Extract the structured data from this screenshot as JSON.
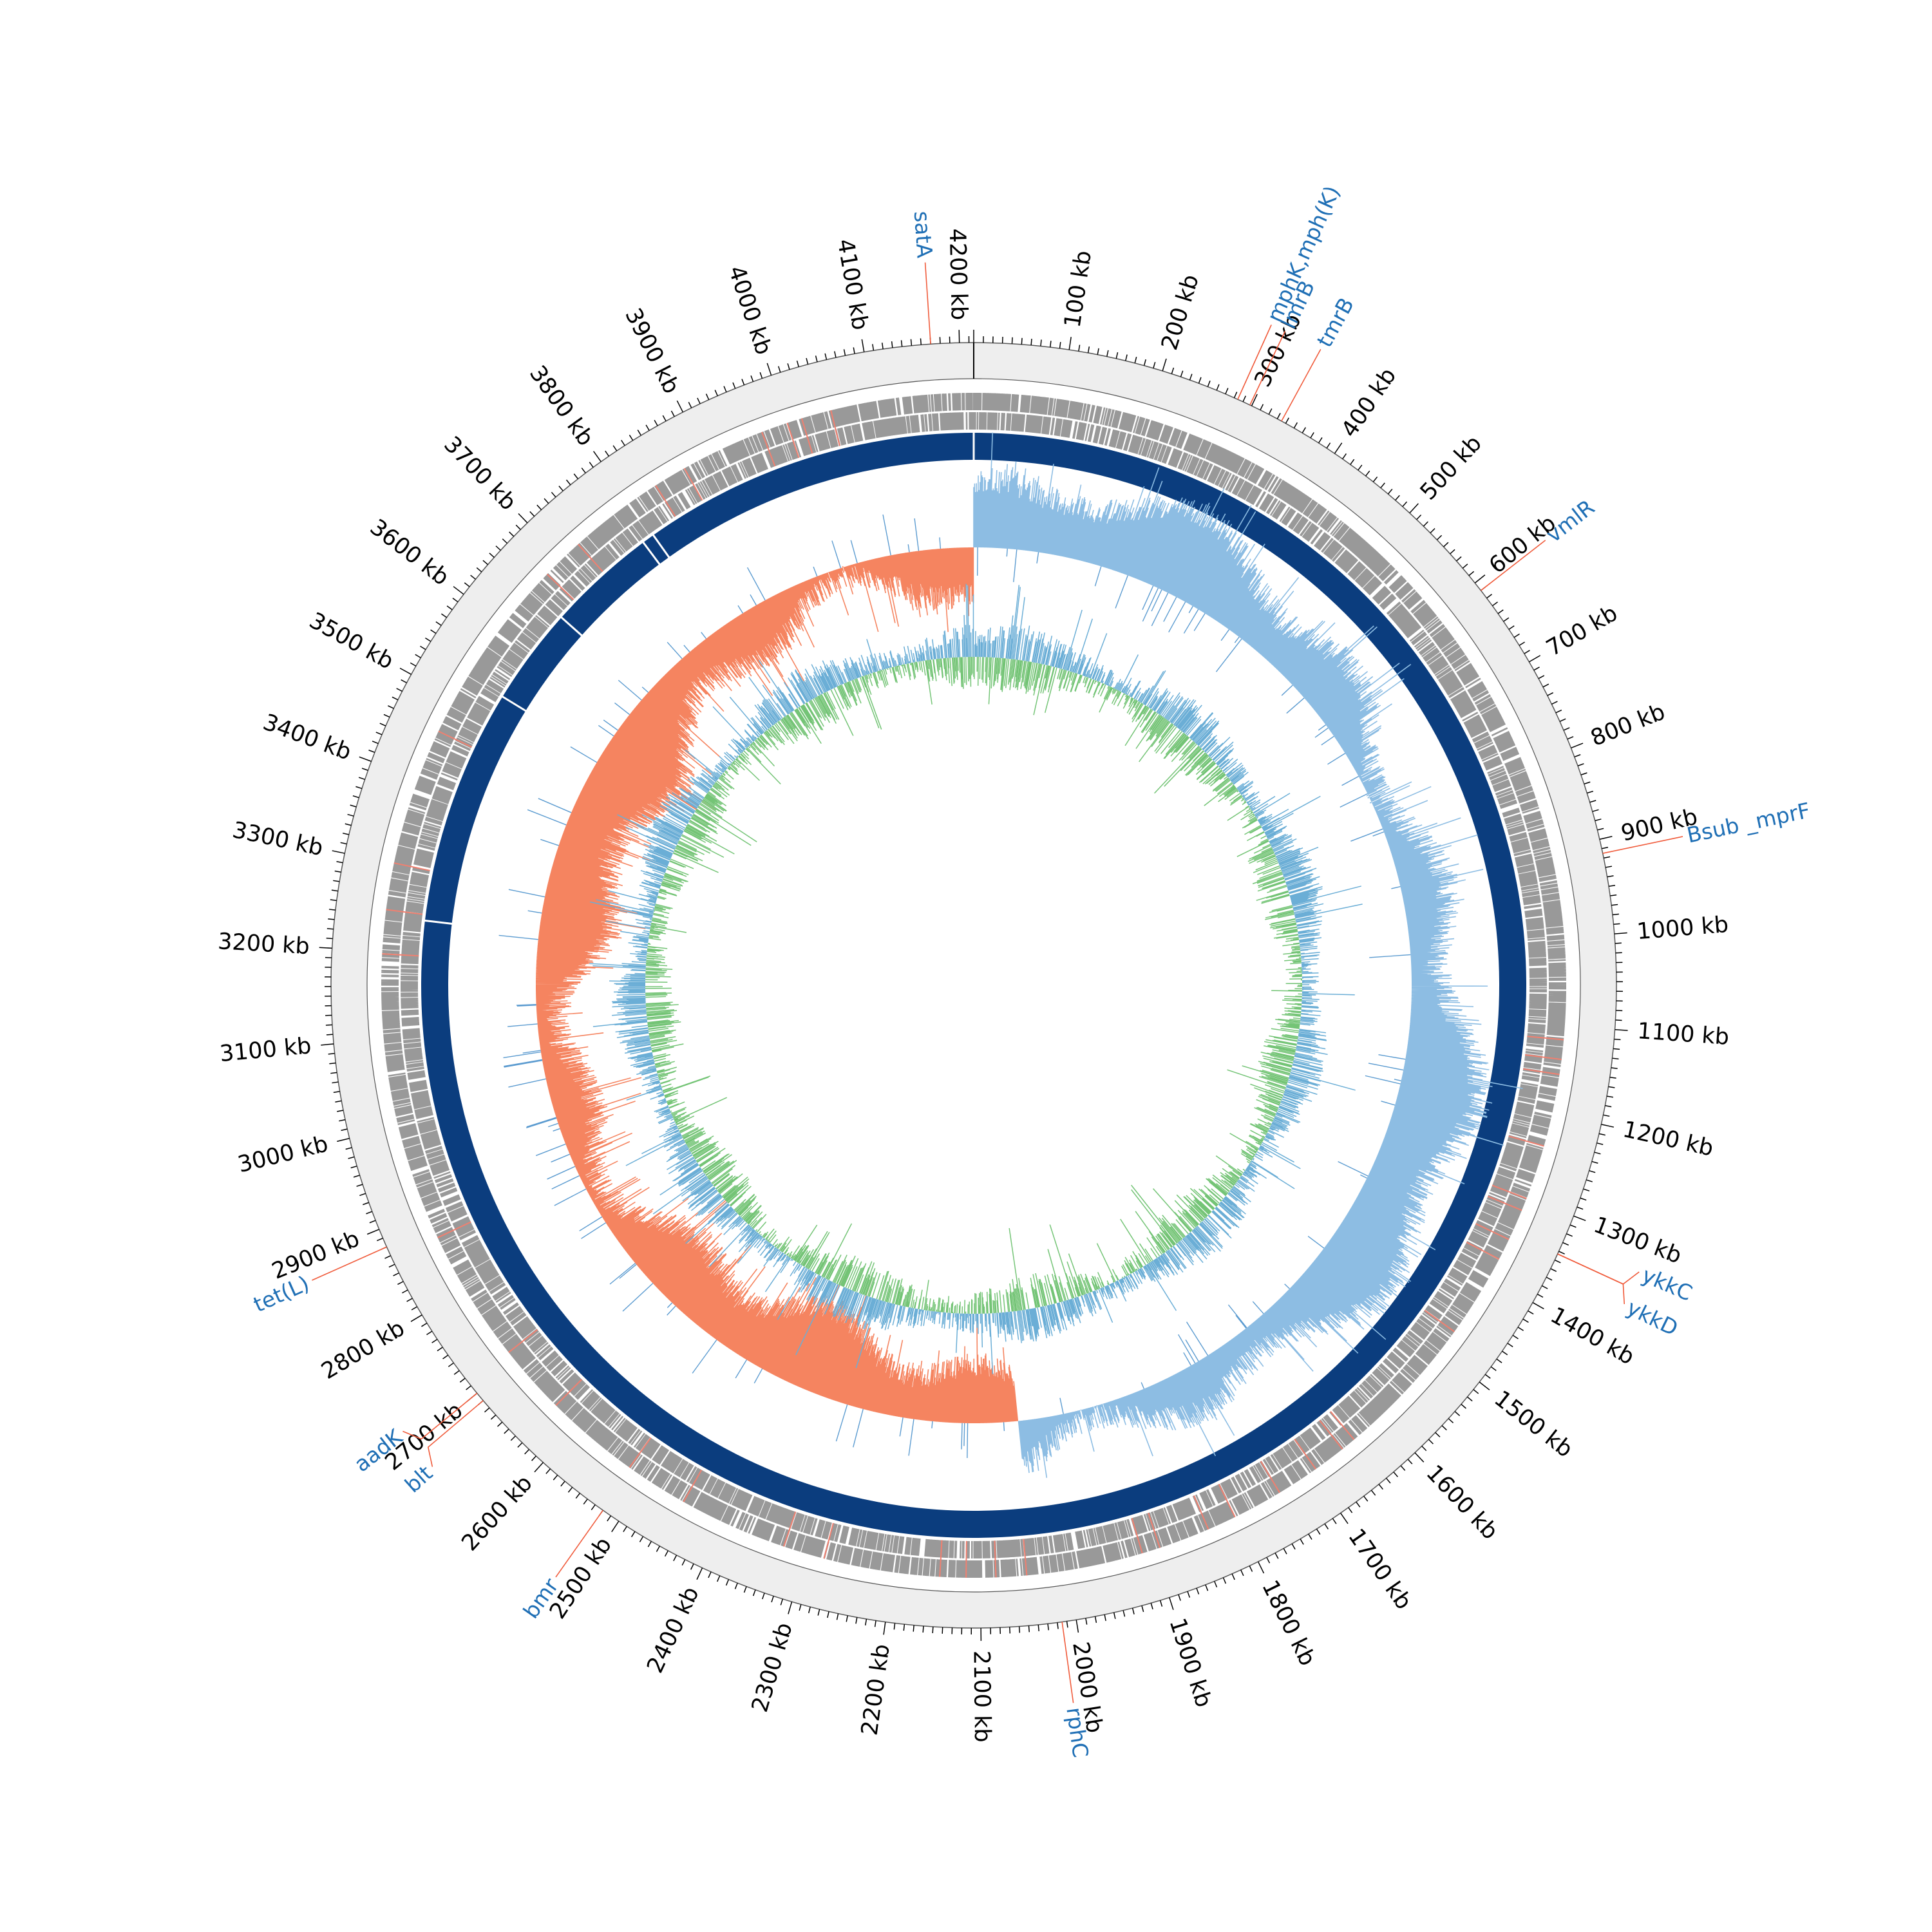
{
  "genome": {
    "length_kb": 4215,
    "tick_label_step_kb": 100,
    "tick_unit": "kb"
  },
  "tracks": {
    "ticks": {
      "color": "#000000"
    },
    "outer_band": {
      "color": "#eeeeee"
    },
    "features": {
      "color": "#999999",
      "highlight_color": "#f08070"
    },
    "backbone": {
      "color": "#0b3d7e",
      "gaps_kb": [
        0,
        3800,
        3785,
        3650,
        3530,
        3240
      ]
    },
    "gc_skew": {
      "positive_color": "#8dbde3",
      "negative_color": "#f58460",
      "switch_kb": [
        0,
        2040
      ]
    },
    "gc_content": {
      "above_color": "#6baed6",
      "below_color": "#74c476"
    }
  },
  "genes": [
    {
      "name": "satA",
      "position_kb": 4170
    },
    {
      "name": "mphK,mph(K)",
      "position_kb": 284
    },
    {
      "name": "lmrB",
      "position_kb": 298
    },
    {
      "name": "tmrB",
      "position_kb": 335
    },
    {
      "name": "vmlR",
      "position_kb": 610
    },
    {
      "name": "Bsub _mprF",
      "position_kb": 915
    },
    {
      "name": "ykkC",
      "position_kb": 1343
    },
    {
      "name": "ykkD",
      "position_kb": 1343
    },
    {
      "name": "rphC",
      "position_kb": 2015
    },
    {
      "name": "bmr",
      "position_kb": 2520
    },
    {
      "name": "blt",
      "position_kb": 2690
    },
    {
      "name": "aadK",
      "position_kb": 2700
    },
    {
      "name": "tet(L)",
      "position_kb": 2880
    }
  ],
  "colors": {
    "gene_label": "#1f6fb5",
    "gene_line": "#f05a3a",
    "tick_label": "#000000"
  }
}
